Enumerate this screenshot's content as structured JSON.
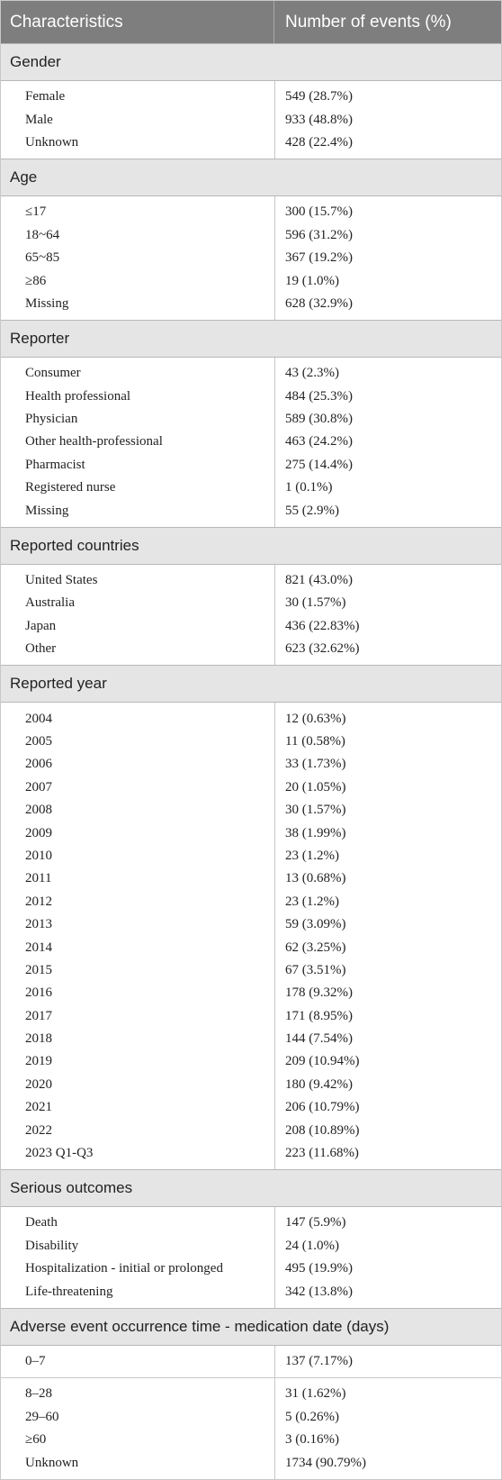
{
  "header": {
    "col1": "Characteristics",
    "col2": "Number of events (%)"
  },
  "sections": [
    {
      "title": "Gender",
      "rows": [
        {
          "label": "Female",
          "value": "549 (28.7%)"
        },
        {
          "label": "Male",
          "value": "933 (48.8%)"
        },
        {
          "label": "Unknown",
          "value": "428 (22.4%)"
        }
      ]
    },
    {
      "title": "Age",
      "rows": [
        {
          "label": "≤17",
          "value": "300 (15.7%)"
        },
        {
          "label": "18~64",
          "value": "596 (31.2%)"
        },
        {
          "label": "65~85",
          "value": "367 (19.2%)"
        },
        {
          "label": "≥86",
          "value": "19 (1.0%)"
        },
        {
          "label": "Missing",
          "value": "628 (32.9%)"
        }
      ]
    },
    {
      "title": "Reporter",
      "rows": [
        {
          "label": "Consumer",
          "value": "43 (2.3%)"
        },
        {
          "label": "Health professional",
          "value": "484 (25.3%)"
        },
        {
          "label": "Physician",
          "value": "589 (30.8%)"
        },
        {
          "label": "Other health-professional",
          "value": "463 (24.2%)"
        },
        {
          "label": "Pharmacist",
          "value": "275 (14.4%)"
        },
        {
          "label": "Registered nurse",
          "value": "1 (0.1%)"
        },
        {
          "label": "Missing",
          "value": "55 (2.9%)"
        }
      ]
    },
    {
      "title": "Reported countries",
      "rows": [
        {
          "label": "United States",
          "value": "821 (43.0%)"
        },
        {
          "label": "Australia",
          "value": "30 (1.57%)"
        },
        {
          "label": "Japan",
          "value": "436 (22.83%)"
        },
        {
          "label": "Other",
          "value": "623 (32.62%)"
        }
      ]
    },
    {
      "title": "Reported year",
      "rows": [
        {
          "label": "2004",
          "value": "12 (0.63%)"
        },
        {
          "label": "2005",
          "value": "11 (0.58%)"
        },
        {
          "label": "2006",
          "value": "33 (1.73%)"
        },
        {
          "label": "2007",
          "value": "20 (1.05%)"
        },
        {
          "label": "2008",
          "value": "30 (1.57%)"
        },
        {
          "label": "2009",
          "value": "38 (1.99%)"
        },
        {
          "label": "2010",
          "value": "23 (1.2%)"
        },
        {
          "label": "2011",
          "value": "13 (0.68%)"
        },
        {
          "label": "2012",
          "value": "23 (1.2%)"
        },
        {
          "label": "2013",
          "value": "59 (3.09%)"
        },
        {
          "label": "2014",
          "value": "62 (3.25%)"
        },
        {
          "label": "2015",
          "value": "67 (3.51%)"
        },
        {
          "label": "2016",
          "value": "178 (9.32%)"
        },
        {
          "label": "2017",
          "value": "171 (8.95%)"
        },
        {
          "label": "2018",
          "value": "144 (7.54%)"
        },
        {
          "label": "2019",
          "value": "209 (10.94%)"
        },
        {
          "label": "2020",
          "value": "180 (9.42%)"
        },
        {
          "label": "2021",
          "value": "206 (10.79%)"
        },
        {
          "label": "2022",
          "value": "208 (10.89%)"
        },
        {
          "label": "2023 Q1-Q3",
          "value": "223 (11.68%)"
        }
      ]
    },
    {
      "title": "Serious outcomes",
      "rows": [
        {
          "label": "Death",
          "value": "147 (5.9%)"
        },
        {
          "label": "Disability",
          "value": "24 (1.0%)"
        },
        {
          "label": "Hospitalization - initial or prolonged",
          "value": "495 (19.9%)"
        },
        {
          "label": "Life-threatening",
          "value": "342 (13.8%)"
        }
      ]
    },
    {
      "title": "Adverse event occurrence time - medication date (days)",
      "rows": [
        {
          "label": "0–7",
          "value": "137 (7.17%)",
          "split_after": true
        },
        {
          "label": "8–28",
          "value": "31 (1.62%)"
        },
        {
          "label": "29–60",
          "value": "5 (0.26%)"
        },
        {
          "label": "≥60",
          "value": "3 (0.16%)"
        },
        {
          "label": "Unknown",
          "value": "1734 (90.79%)"
        }
      ]
    }
  ]
}
